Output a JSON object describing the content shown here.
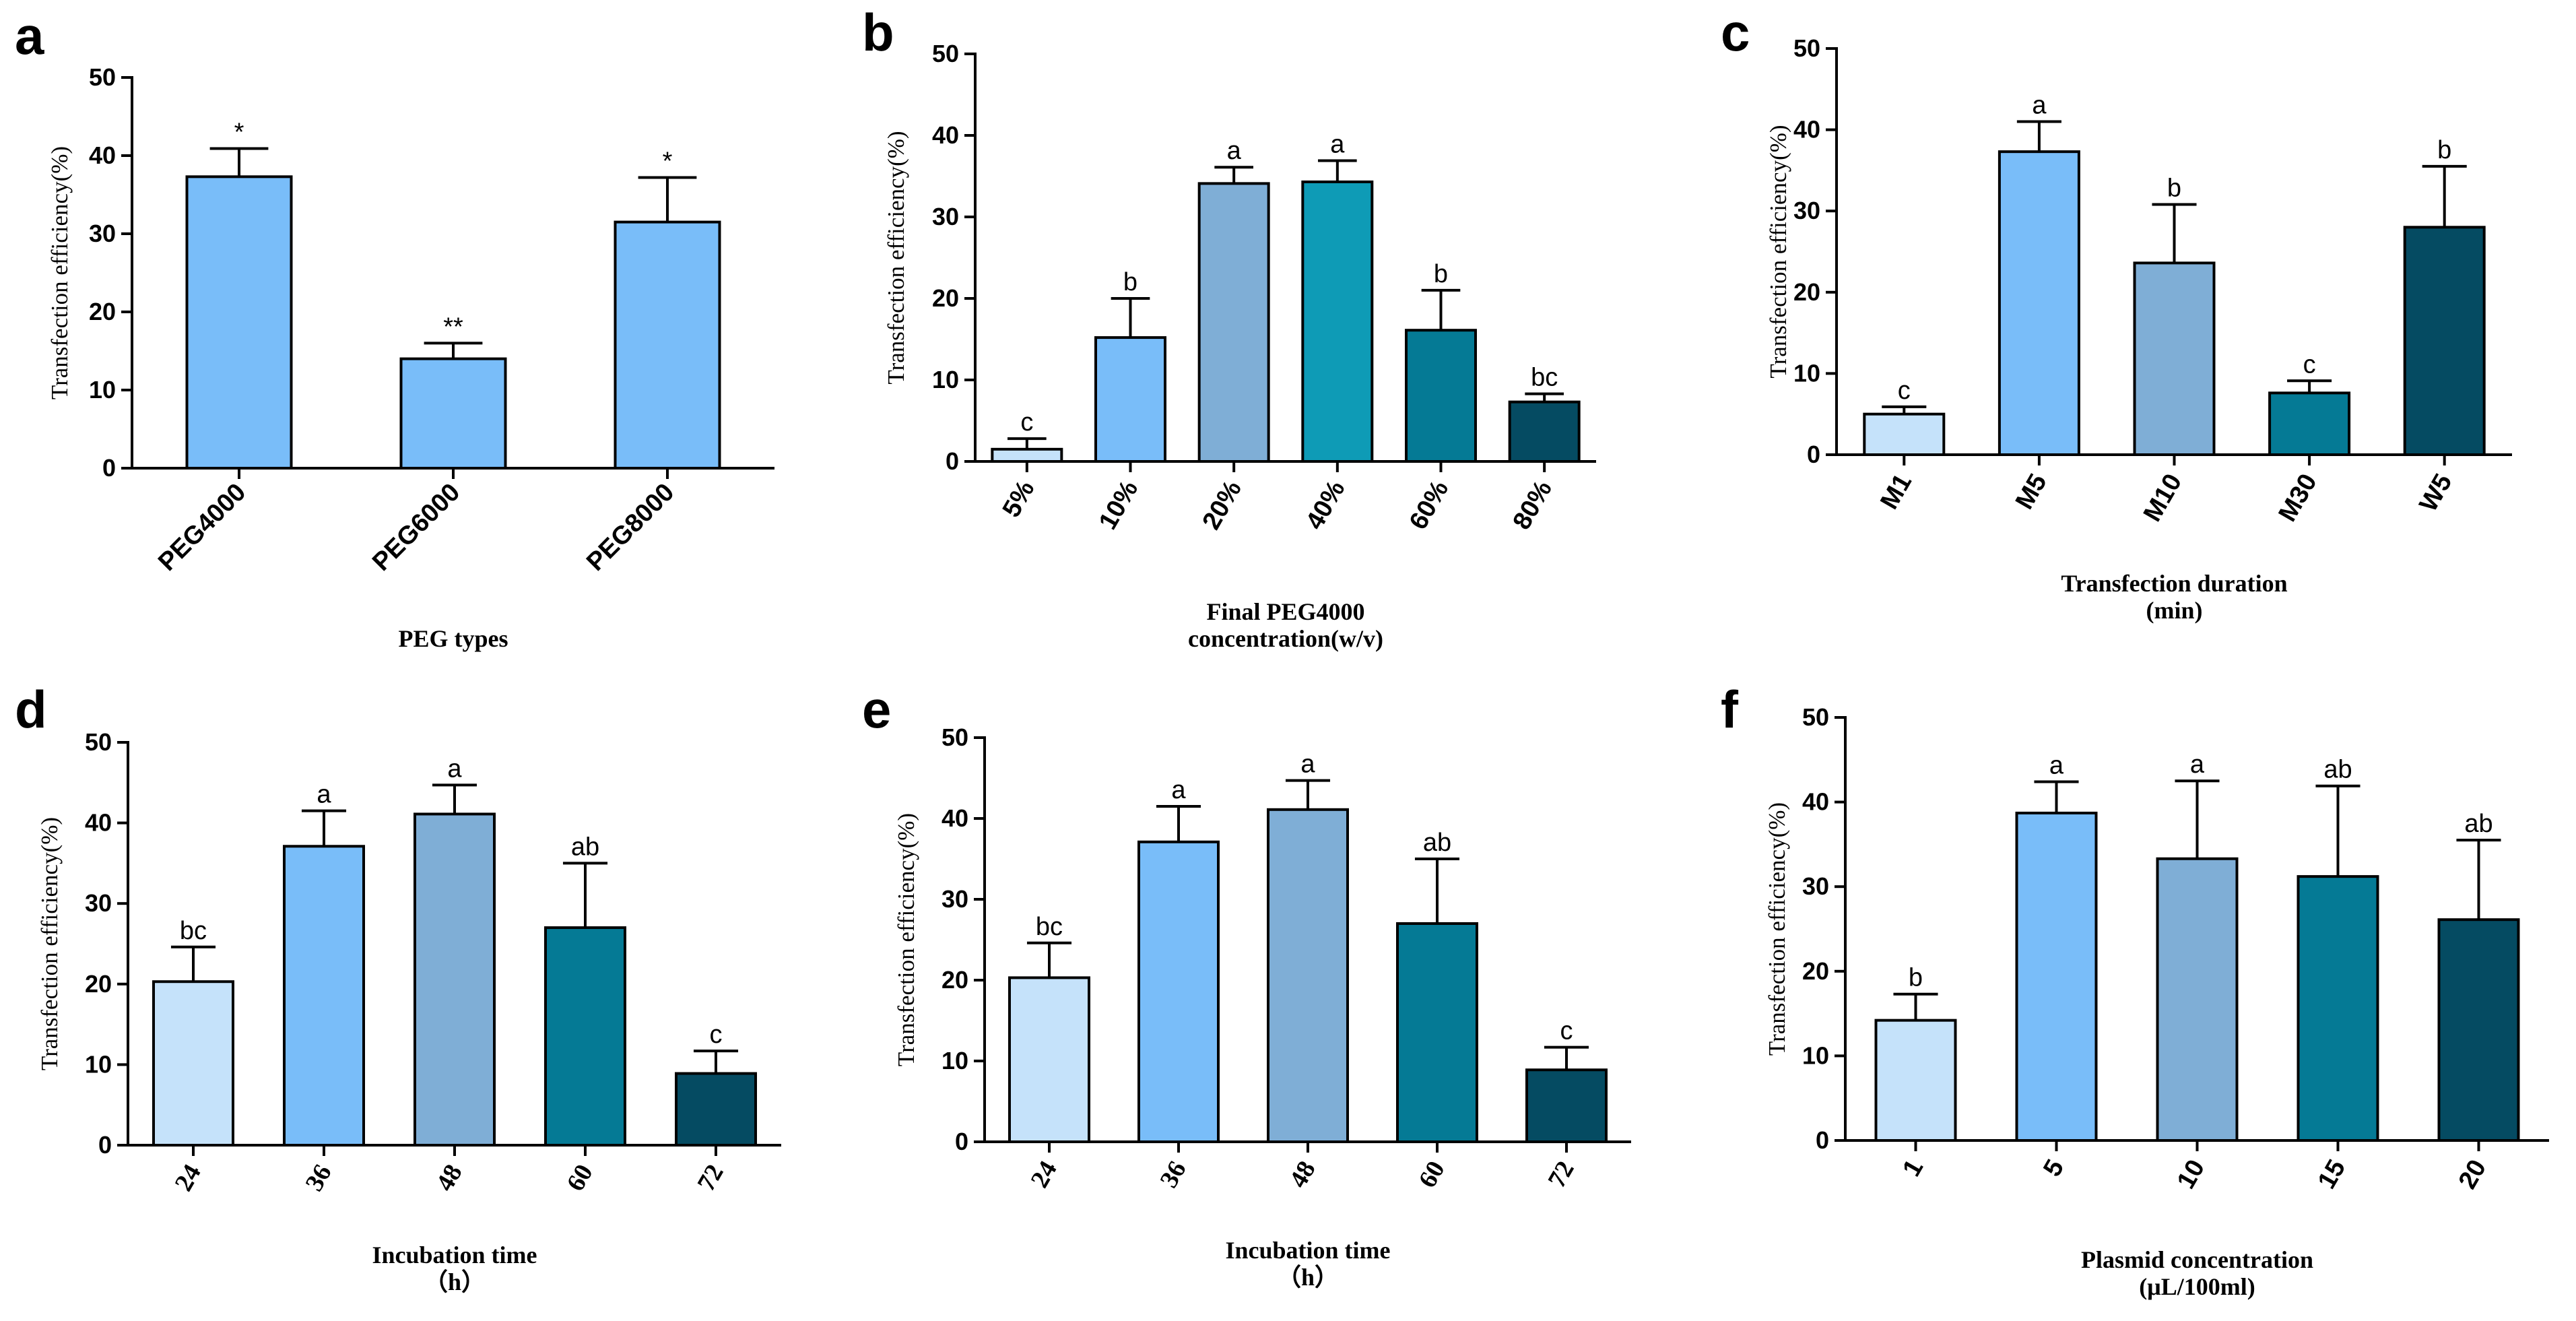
{
  "chart_data": [
    {
      "panel": "a",
      "type": "bar",
      "ylabel": "Transfection efficiency(%)",
      "xlabel_lines": [
        "PEG types"
      ],
      "ylim": [
        0,
        50
      ],
      "yticks": [
        0,
        10,
        20,
        30,
        40,
        50
      ],
      "tick_rotation": -45,
      "tick_font": "sans",
      "categories": [
        "PEG4000",
        "PEG6000",
        "PEG8000"
      ],
      "values": [
        37.3,
        14.0,
        31.5
      ],
      "errors": [
        3.6,
        2.0,
        5.7
      ],
      "significance": [
        "*",
        "**",
        "*"
      ],
      "colors": [
        "#79bdf9",
        "#79bdf9",
        "#79bdf9"
      ]
    },
    {
      "panel": "b",
      "type": "bar",
      "ylabel": "Transfection efficiency(%)",
      "xlabel_lines": [
        "Final PEG4000",
        "concentration(w/v)"
      ],
      "ylim": [
        0,
        50
      ],
      "yticks": [
        0,
        10,
        20,
        30,
        40,
        50
      ],
      "tick_rotation": -60,
      "tick_font": "sans",
      "categories": [
        "5%",
        "10%",
        "20%",
        "40%",
        "60%",
        "80%"
      ],
      "values": [
        1.5,
        15.2,
        34.1,
        34.3,
        16.1,
        7.3
      ],
      "errors": [
        1.3,
        4.8,
        2.0,
        2.6,
        4.9,
        1.0
      ],
      "significance": [
        "c",
        "b",
        "a",
        "a",
        "b",
        "bc"
      ],
      "colors": [
        "#c5e2fa",
        "#79bdf9",
        "#7faed6",
        "#0e9bb6",
        "#057a95",
        "#054b62"
      ]
    },
    {
      "panel": "c",
      "type": "bar",
      "ylabel": "Transfection efficiency(%)",
      "xlabel_lines": [
        "Transfection duration",
        "(min)"
      ],
      "ylim": [
        0,
        50
      ],
      "yticks": [
        0,
        10,
        20,
        30,
        40,
        50
      ],
      "tick_rotation": -60,
      "tick_font": "sans",
      "categories": [
        "M1",
        "M5",
        "M10",
        "M30",
        "W5"
      ],
      "values": [
        5.0,
        37.3,
        23.6,
        7.6,
        28.0
      ],
      "errors": [
        0.9,
        3.7,
        7.2,
        1.5,
        7.5
      ],
      "significance": [
        "c",
        "a",
        "b",
        "c",
        "b"
      ],
      "colors": [
        "#c5e2fa",
        "#79bdf9",
        "#7faed6",
        "#057a95",
        "#054b62"
      ]
    },
    {
      "panel": "d",
      "type": "bar",
      "ylabel": "Transfection efficiency(%)",
      "xlabel_lines": [
        "Incubation time",
        "（h）"
      ],
      "ylim": [
        0,
        50
      ],
      "yticks": [
        0,
        10,
        20,
        30,
        40,
        50
      ],
      "tick_rotation": -60,
      "tick_font": "serif",
      "categories": [
        "24",
        "36",
        "48",
        "60",
        "72"
      ],
      "values": [
        20.3,
        37.1,
        41.1,
        27.0,
        8.9
      ],
      "errors": [
        4.3,
        4.4,
        3.6,
        8.0,
        2.8
      ],
      "significance": [
        "bc",
        "a",
        "a",
        "ab",
        "c"
      ],
      "colors": [
        "#c5e2fa",
        "#79bdf9",
        "#7faed6",
        "#057a95",
        "#054b62"
      ]
    },
    {
      "panel": "e",
      "type": "bar",
      "ylabel": "Transfection efficiency(%)",
      "xlabel_lines": [
        "Incubation time",
        "（h）"
      ],
      "ylim": [
        0,
        50
      ],
      "yticks": [
        0,
        10,
        20,
        30,
        40,
        50
      ],
      "tick_rotation": -60,
      "tick_font": "serif",
      "categories": [
        "24",
        "36",
        "48",
        "60",
        "72"
      ],
      "values": [
        20.3,
        37.1,
        41.1,
        27.0,
        8.9
      ],
      "errors": [
        4.3,
        4.4,
        3.6,
        8.0,
        2.8
      ],
      "significance": [
        "bc",
        "a",
        "a",
        "ab",
        "c"
      ],
      "colors": [
        "#c5e2fa",
        "#79bdf9",
        "#7faed6",
        "#057a95",
        "#054b62"
      ]
    },
    {
      "panel": "f",
      "type": "bar",
      "ylabel": "Transfection efficiency(%)",
      "xlabel_lines": [
        "Plasmid concentration",
        "(μL/100ml)"
      ],
      "ylim": [
        0,
        50
      ],
      "yticks": [
        0,
        10,
        20,
        30,
        40,
        50
      ],
      "tick_rotation": -60,
      "tick_font": "sans",
      "categories": [
        "1",
        "5",
        "10",
        "15",
        "20"
      ],
      "values": [
        14.2,
        38.7,
        33.3,
        31.2,
        26.1
      ],
      "errors": [
        3.1,
        3.7,
        9.2,
        10.7,
        9.4
      ],
      "significance": [
        "b",
        "a",
        "a",
        "ab",
        "ab"
      ],
      "colors": [
        "#c5e2fa",
        "#79bdf9",
        "#7faed6",
        "#057a95",
        "#054b62"
      ]
    }
  ]
}
